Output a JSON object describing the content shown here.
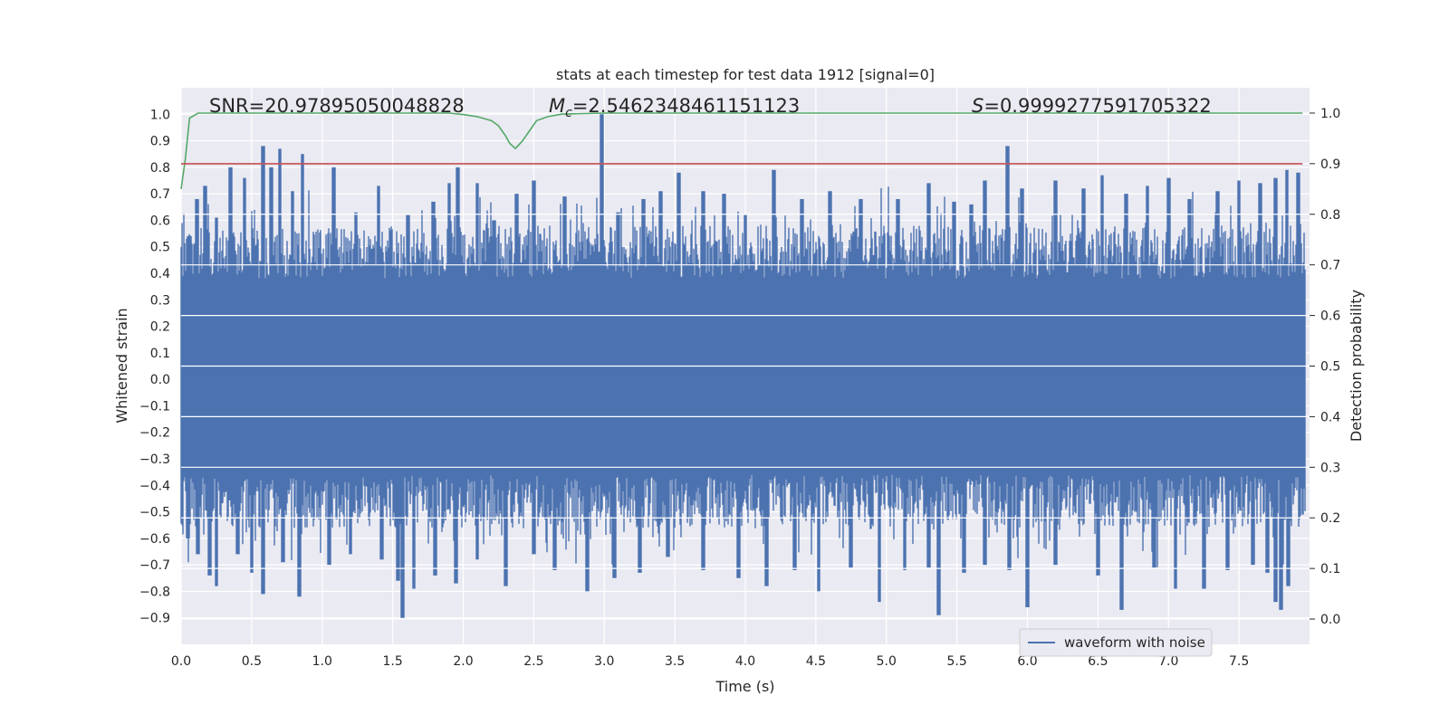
{
  "chart_data": {
    "type": "line",
    "title": "stats at each timestep for test data 1912 [signal=0]",
    "xlabel": "Time (s)",
    "ylabel": "Whitened strain",
    "y2label": "Detection probability",
    "xlim": [
      0.0,
      8.0
    ],
    "ylim": [
      -1.0,
      1.1
    ],
    "y2lim": [
      -0.05,
      1.05
    ],
    "x_ticks": [
      0.0,
      0.5,
      1.0,
      1.5,
      2.0,
      2.5,
      3.0,
      3.5,
      4.0,
      4.5,
      5.0,
      5.5,
      6.0,
      6.5,
      7.0,
      7.5
    ],
    "y_ticks": [
      -0.9,
      -0.8,
      -0.7,
      -0.6,
      -0.5,
      -0.4,
      -0.3,
      -0.2,
      -0.1,
      0.0,
      0.1,
      0.2,
      0.3,
      0.4,
      0.5,
      0.6,
      0.7,
      0.8,
      0.9,
      1.0
    ],
    "y2_ticks": [
      0.0,
      0.1,
      0.2,
      0.3,
      0.4,
      0.5,
      0.6,
      0.7,
      0.8,
      0.9,
      1.0
    ],
    "grid": true,
    "legend_position": "lower-right",
    "annotations": {
      "snr": "SNR=20.97895050048828",
      "mc_symbol": "M",
      "mc_sub": "c",
      "mc_value": "=2.5462348461151123",
      "s_symbol": "S",
      "s_value": "=0.9999277591705322"
    },
    "series": [
      {
        "name": "waveform with noise",
        "axis": "left",
        "color": "#4c72b0",
        "band_upper_base": 0.38,
        "band_lower_base": -0.36,
        "peaks": [
          [
            0.06,
            0.54
          ],
          [
            0.11,
            0.68
          ],
          [
            0.17,
            0.73
          ],
          [
            0.25,
            0.61
          ],
          [
            0.35,
            0.8
          ],
          [
            0.45,
            0.76
          ],
          [
            0.58,
            0.88
          ],
          [
            0.64,
            0.8
          ],
          [
            0.7,
            0.87
          ],
          [
            0.79,
            0.71
          ],
          [
            0.86,
            0.85
          ],
          [
            1.08,
            0.8
          ],
          [
            1.24,
            0.63
          ],
          [
            1.4,
            0.73
          ],
          [
            1.61,
            0.62
          ],
          [
            1.79,
            0.67
          ],
          [
            1.9,
            0.74
          ],
          [
            1.96,
            0.8
          ],
          [
            2.1,
            0.74
          ],
          [
            2.22,
            0.6
          ],
          [
            2.38,
            0.7
          ],
          [
            2.5,
            0.75
          ],
          [
            2.72,
            0.69
          ],
          [
            2.98,
            1.0
          ],
          [
            3.1,
            0.63
          ],
          [
            3.28,
            0.68
          ],
          [
            3.4,
            0.71
          ],
          [
            3.53,
            0.78
          ],
          [
            3.7,
            0.71
          ],
          [
            3.85,
            0.7
          ],
          [
            4.0,
            0.62
          ],
          [
            4.2,
            0.79
          ],
          [
            4.4,
            0.68
          ],
          [
            4.6,
            0.71
          ],
          [
            4.82,
            0.68
          ],
          [
            5.08,
            0.68
          ],
          [
            5.3,
            0.74
          ],
          [
            5.48,
            0.67
          ],
          [
            5.6,
            0.66
          ],
          [
            5.7,
            0.75
          ],
          [
            5.86,
            0.88
          ],
          [
            5.96,
            0.72
          ],
          [
            6.2,
            0.75
          ],
          [
            6.4,
            0.72
          ],
          [
            6.53,
            0.77
          ],
          [
            6.7,
            0.7
          ],
          [
            6.85,
            0.73
          ],
          [
            7.0,
            0.76
          ],
          [
            7.15,
            0.68
          ],
          [
            7.35,
            0.71
          ],
          [
            7.5,
            0.75
          ],
          [
            7.65,
            0.74
          ],
          [
            7.76,
            0.76
          ],
          [
            7.84,
            0.79
          ],
          [
            7.92,
            0.78
          ]
        ],
        "troughs": [
          [
            0.05,
            -0.6
          ],
          [
            0.12,
            -0.66
          ],
          [
            0.2,
            -0.74
          ],
          [
            0.25,
            -0.78
          ],
          [
            0.4,
            -0.66
          ],
          [
            0.5,
            -0.73
          ],
          [
            0.58,
            -0.81
          ],
          [
            0.72,
            -0.69
          ],
          [
            0.84,
            -0.82
          ],
          [
            1.05,
            -0.7
          ],
          [
            1.2,
            -0.66
          ],
          [
            1.42,
            -0.68
          ],
          [
            1.54,
            -0.76
          ],
          [
            1.57,
            -0.9
          ],
          [
            1.65,
            -0.79
          ],
          [
            1.8,
            -0.74
          ],
          [
            1.95,
            -0.77
          ],
          [
            2.1,
            -0.68
          ],
          [
            2.3,
            -0.78
          ],
          [
            2.5,
            -0.66
          ],
          [
            2.65,
            -0.72
          ],
          [
            2.88,
            -0.8
          ],
          [
            3.07,
            -0.75
          ],
          [
            3.25,
            -0.73
          ],
          [
            3.45,
            -0.67
          ],
          [
            3.7,
            -0.72
          ],
          [
            3.95,
            -0.75
          ],
          [
            4.15,
            -0.78
          ],
          [
            4.35,
            -0.72
          ],
          [
            4.52,
            -0.8
          ],
          [
            4.75,
            -0.71
          ],
          [
            4.95,
            -0.84
          ],
          [
            5.13,
            -0.72
          ],
          [
            5.3,
            -0.71
          ],
          [
            5.37,
            -0.89
          ],
          [
            5.55,
            -0.73
          ],
          [
            5.7,
            -0.7
          ],
          [
            5.87,
            -0.72
          ],
          [
            6.0,
            -0.86
          ],
          [
            6.2,
            -0.7
          ],
          [
            6.5,
            -0.74
          ],
          [
            6.67,
            -0.87
          ],
          [
            6.9,
            -0.71
          ],
          [
            7.05,
            -0.79
          ],
          [
            7.25,
            -0.79
          ],
          [
            7.42,
            -0.72
          ],
          [
            7.6,
            -0.7
          ],
          [
            7.7,
            -0.73
          ],
          [
            7.76,
            -0.84
          ],
          [
            7.8,
            -0.87
          ],
          [
            7.85,
            -0.78
          ]
        ]
      },
      {
        "name": "",
        "axis": "right",
        "color": "#55a868",
        "x": [
          0.0,
          0.03,
          0.06,
          0.12,
          0.2,
          1.5,
          1.9,
          2.0,
          2.1,
          2.2,
          2.25,
          2.3,
          2.33,
          2.37,
          2.42,
          2.47,
          2.52,
          2.6,
          2.7,
          3.0,
          7.95
        ],
        "y": [
          0.85,
          0.91,
          0.99,
          1.0,
          1.0,
          1.0,
          1.0,
          0.997,
          0.993,
          0.985,
          0.975,
          0.955,
          0.94,
          0.93,
          0.945,
          0.965,
          0.985,
          0.993,
          0.998,
          1.0,
          1.0
        ]
      },
      {
        "name": "",
        "axis": "right",
        "color": "#c44e52",
        "x": [
          0.0,
          7.95
        ],
        "y": [
          0.9,
          0.9
        ]
      }
    ]
  }
}
